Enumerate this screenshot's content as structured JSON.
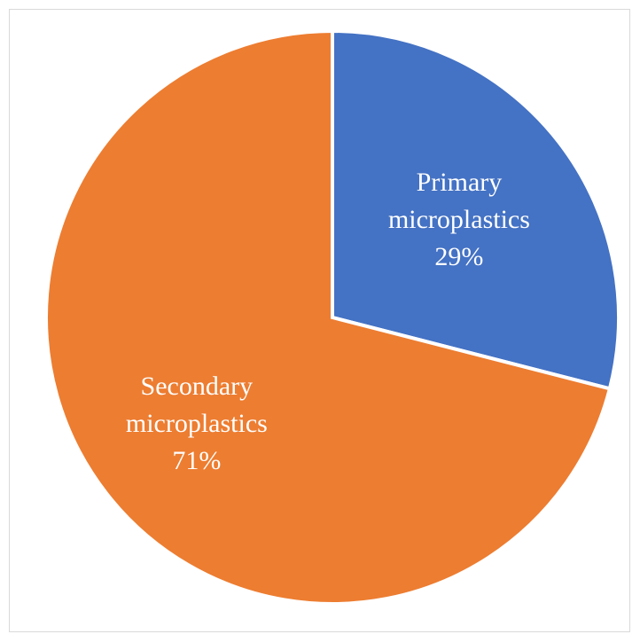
{
  "chart_data": {
    "type": "pie",
    "title": "",
    "slices": [
      {
        "label": "Primary microplastics",
        "label_lines": [
          "Primary",
          "microplastics"
        ],
        "value": 29,
        "value_text": "29%",
        "color": "#4472C4"
      },
      {
        "label": "Secondary microplastics",
        "label_lines": [
          "Secondary",
          "microplastics"
        ],
        "value": 71,
        "value_text": "71%",
        "color": "#ED7D31"
      }
    ],
    "start_angle_deg": 0,
    "direction": "clockwise",
    "data_labels": "inside",
    "legend": "none"
  }
}
